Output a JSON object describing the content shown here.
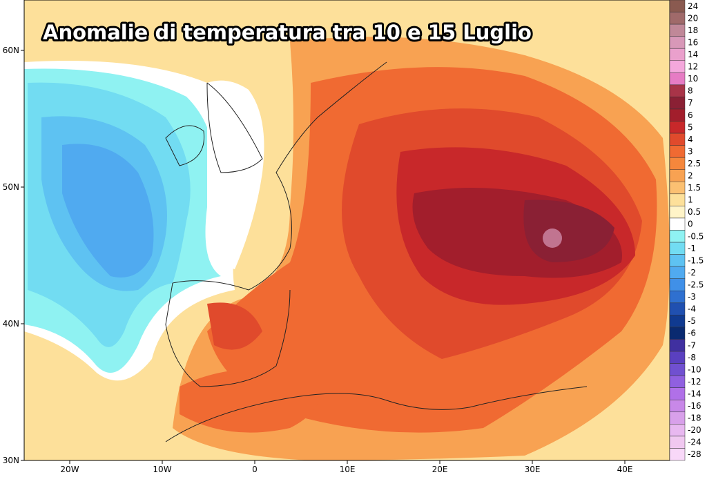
{
  "title": "Anomalie di temperatura tra 10 e 15 Luglio",
  "lat_labels": [
    "60N",
    "50N",
    "40N",
    "30N"
  ],
  "lon_labels": [
    "20W",
    "10W",
    "0",
    "10E",
    "20E",
    "30E",
    "40E"
  ],
  "colorbar": {
    "levels": [
      {
        "value": 24,
        "color": "#8a5a50"
      },
      {
        "value": 20,
        "color": "#a06a6a"
      },
      {
        "value": 18,
        "color": "#c08898"
      },
      {
        "value": 16,
        "color": "#d898b8"
      },
      {
        "value": 14,
        "color": "#eaa0cc"
      },
      {
        "value": 12,
        "color": "#f4a8dc"
      },
      {
        "value": 10,
        "color": "#e67cc4"
      },
      {
        "value": 8,
        "color": "#a83448"
      },
      {
        "value": 7,
        "color": "#8a2034"
      },
      {
        "value": 6,
        "color": "#a21e2c"
      },
      {
        "value": 5,
        "color": "#c8282a"
      },
      {
        "value": 4,
        "color": "#e04a2c"
      },
      {
        "value": 3,
        "color": "#f06a32"
      },
      {
        "value": 2.5,
        "color": "#f5873c"
      },
      {
        "value": 2,
        "color": "#f8a252"
      },
      {
        "value": 1.5,
        "color": "#fbc072"
      },
      {
        "value": 1,
        "color": "#fde09a"
      },
      {
        "value": 0.5,
        "color": "#fff4c8"
      },
      {
        "value": 0,
        "color": "#ffffff"
      },
      {
        "value": -0.5,
        "color": "#8ff2f2"
      },
      {
        "value": -1,
        "color": "#72dcf2"
      },
      {
        "value": -1.5,
        "color": "#5ec2f2"
      },
      {
        "value": -2,
        "color": "#50aaf0"
      },
      {
        "value": -2.5,
        "color": "#4090e8"
      },
      {
        "value": -3,
        "color": "#2f70d0"
      },
      {
        "value": -4,
        "color": "#2050b0"
      },
      {
        "value": -5,
        "color": "#103a90"
      },
      {
        "value": -6,
        "color": "#0a2a70"
      },
      {
        "value": -7,
        "color": "#4030a0"
      },
      {
        "value": -8,
        "color": "#5a40c0"
      },
      {
        "value": -10,
        "color": "#7050d0"
      },
      {
        "value": -12,
        "color": "#9060e0"
      },
      {
        "value": -14,
        "color": "#b070e8"
      },
      {
        "value": -16,
        "color": "#c888e8"
      },
      {
        "value": -18,
        "color": "#d8a0ea"
      },
      {
        "value": -20,
        "color": "#e8b8f0"
      },
      {
        "value": -24,
        "color": "#f0c8f0"
      },
      {
        "value": -28,
        "color": "#f8d8f8"
      }
    ]
  }
}
